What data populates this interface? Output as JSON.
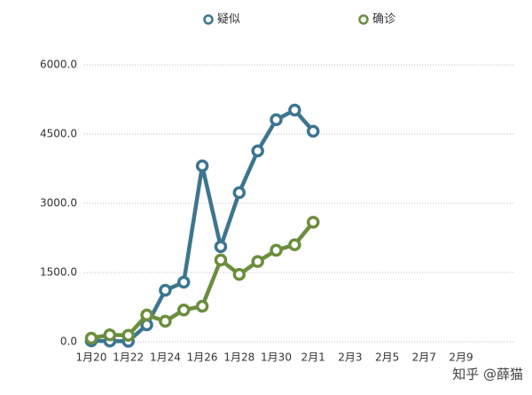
{
  "chart_data": {
    "type": "line",
    "categories": [
      "1月20",
      null,
      "1月22",
      null,
      "1月24",
      null,
      "1月26",
      null,
      "1月28",
      null,
      "1月30",
      null,
      "2月1",
      null,
      "2月3",
      null,
      "2月5",
      null,
      "2月7",
      null,
      "2月9"
    ],
    "series": [
      {
        "name": "疑似",
        "color": "#3d7591",
        "values": [
          20,
          15,
          10,
          365,
          1115,
          1290,
          3810,
          2060,
          3230,
          4135,
          4810,
          5020,
          4560,
          null,
          null,
          null,
          null,
          null,
          null,
          null,
          null
        ]
      },
      {
        "name": "确诊",
        "color": "#6b8e3e",
        "values": [
          77,
          149,
          140,
          580,
          444,
          688,
          769,
          1771,
          1459,
          1737,
          1982,
          2102,
          2590,
          null,
          null,
          null,
          null,
          null,
          null,
          null,
          null
        ]
      }
    ],
    "ylim": [
      0,
      6000
    ],
    "yticks": [
      {
        "value": 0,
        "label": "0.0"
      },
      {
        "value": 1500,
        "label": "1500.0"
      },
      {
        "value": 3000,
        "label": "3000.0"
      },
      {
        "value": 4500,
        "label": "4500.0"
      },
      {
        "value": 6000,
        "label": "6000.0"
      }
    ],
    "grid": true,
    "legend": "top",
    "watermark": "知乎 @薛猫"
  }
}
